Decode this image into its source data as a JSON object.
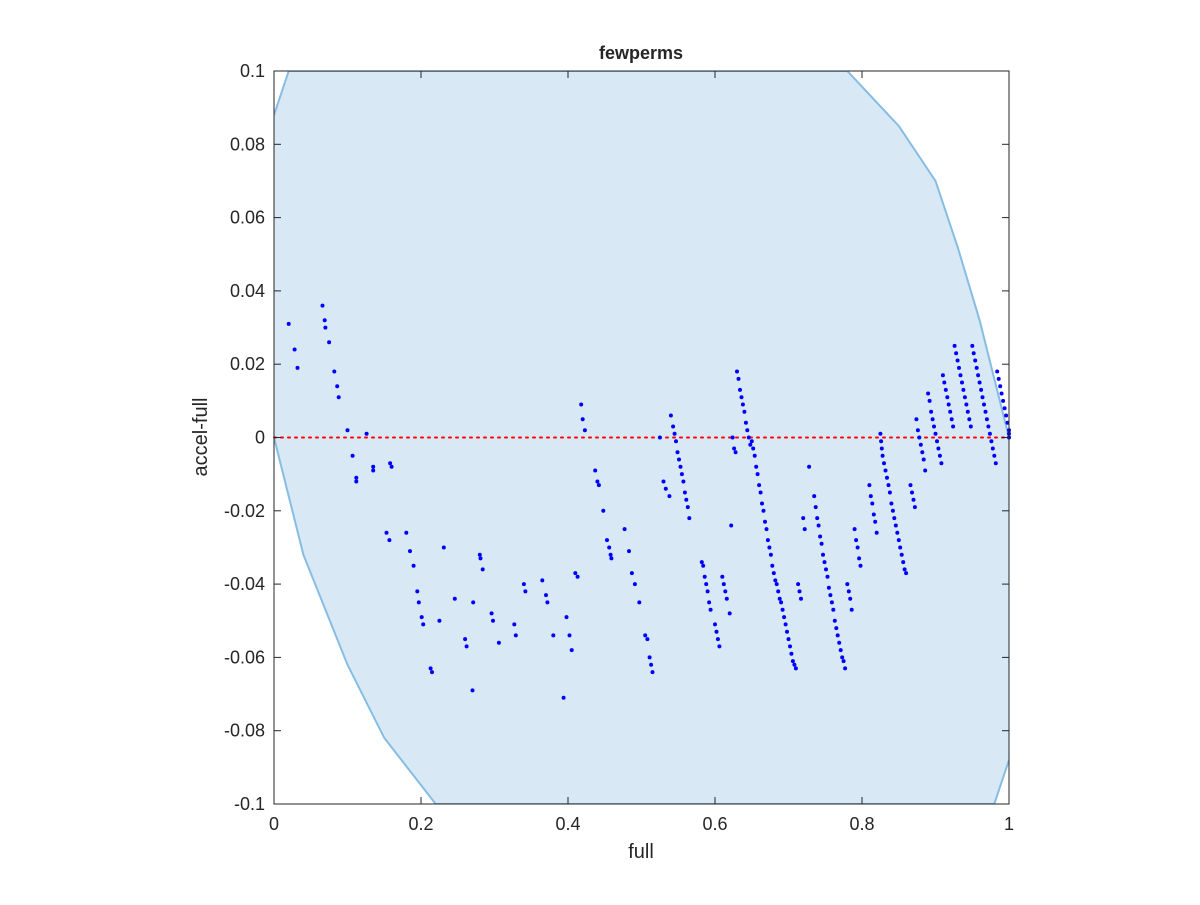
{
  "chart_data": {
    "type": "scatter",
    "title": "fewperms",
    "xlabel": "full",
    "ylabel": "accel-full",
    "xlim": [
      0,
      1
    ],
    "ylim": [
      -0.1,
      0.1
    ],
    "x_ticks": [
      0,
      0.2,
      0.4,
      0.6,
      0.8,
      1
    ],
    "x_tick_labels": [
      "0",
      "0.2",
      "0.4",
      "0.6",
      "0.8",
      "1"
    ],
    "y_ticks": [
      0.1,
      0.08,
      0.06,
      0.04,
      0.02,
      0,
      -0.02,
      -0.04,
      -0.06,
      -0.08,
      -0.1
    ],
    "y_tick_labels": [
      "0.1",
      "0.08",
      "0.06",
      "0.04",
      "0.02",
      "0",
      "-0.02",
      "-0.04",
      "-0.06",
      "-0.08",
      "-0.1"
    ],
    "grid": false,
    "colors": {
      "points": "#0000ff",
      "region_fill": "#d8e8f4",
      "region_edge": "#87bde3",
      "zero_line": "#ff0000",
      "axes": "#262626"
    },
    "region": {
      "upper_boundary": [
        [
          0,
          0.088
        ],
        [
          0.02,
          0.1
        ],
        [
          0.78,
          0.1
        ],
        [
          0.85,
          0.085
        ],
        [
          0.9,
          0.07
        ],
        [
          0.93,
          0.052
        ],
        [
          0.96,
          0.032
        ],
        [
          1,
          0
        ]
      ],
      "lower_boundary": [
        [
          0,
          0
        ],
        [
          0.04,
          -0.032
        ],
        [
          0.1,
          -0.062
        ],
        [
          0.15,
          -0.082
        ],
        [
          0.22,
          -0.1
        ],
        [
          0.98,
          -0.1
        ],
        [
          1,
          -0.088
        ]
      ]
    },
    "zero_line": {
      "y": 0,
      "style": "dotted"
    },
    "series": [
      {
        "points": [
          [
            0.02,
            0.031
          ],
          [
            0.028,
            0.024
          ],
          [
            0.032,
            0.019
          ],
          [
            0.066,
            0.036
          ],
          [
            0.069,
            0.032
          ],
          [
            0.07,
            0.03
          ],
          [
            0.075,
            0.026
          ],
          [
            0.082,
            0.018
          ],
          [
            0.086,
            0.014
          ],
          [
            0.088,
            0.011
          ],
          [
            0.1,
            0.002
          ],
          [
            0.107,
            -0.005
          ],
          [
            0.112,
            -0.011
          ],
          [
            0.112,
            -0.012
          ],
          [
            0.126,
            0.001
          ],
          [
            0.135,
            -0.008
          ],
          [
            0.135,
            -0.009
          ],
          [
            0.153,
            -0.026
          ],
          [
            0.157,
            -0.028
          ],
          [
            0.158,
            -0.007
          ],
          [
            0.16,
            -0.008
          ],
          [
            0.18,
            -0.026
          ],
          [
            0.185,
            -0.031
          ],
          [
            0.19,
            -0.035
          ],
          [
            0.195,
            -0.042
          ],
          [
            0.197,
            -0.045
          ],
          [
            0.201,
            -0.049
          ],
          [
            0.203,
            -0.051
          ],
          [
            0.213,
            -0.063
          ],
          [
            0.215,
            -0.064
          ],
          [
            0.225,
            -0.05
          ],
          [
            0.231,
            -0.03
          ],
          [
            0.246,
            -0.044
          ],
          [
            0.26,
            -0.055
          ],
          [
            0.262,
            -0.057
          ],
          [
            0.27,
            -0.069
          ],
          [
            0.271,
            -0.045
          ],
          [
            0.28,
            -0.032
          ],
          [
            0.281,
            -0.033
          ],
          [
            0.284,
            -0.036
          ],
          [
            0.296,
            -0.048
          ],
          [
            0.298,
            -0.05
          ],
          [
            0.306,
            -0.056
          ],
          [
            0.327,
            -0.051
          ],
          [
            0.329,
            -0.054
          ],
          [
            0.34,
            -0.04
          ],
          [
            0.342,
            -0.042
          ],
          [
            0.365,
            -0.039
          ],
          [
            0.37,
            -0.043
          ],
          [
            0.372,
            -0.045
          ],
          [
            0.38,
            -0.054
          ],
          [
            0.394,
            -0.071
          ],
          [
            0.398,
            -0.049
          ],
          [
            0.402,
            -0.054
          ],
          [
            0.405,
            -0.058
          ],
          [
            0.41,
            -0.037
          ],
          [
            0.413,
            -0.038
          ],
          [
            0.418,
            0.009
          ],
          [
            0.42,
            0.005
          ],
          [
            0.423,
            0.002
          ],
          [
            0.437,
            -0.009
          ],
          [
            0.44,
            -0.012
          ],
          [
            0.442,
            -0.013
          ],
          [
            0.448,
            -0.02
          ],
          [
            0.453,
            -0.028
          ],
          [
            0.456,
            -0.03
          ],
          [
            0.458,
            -0.032
          ],
          [
            0.459,
            -0.033
          ],
          [
            0.477,
            -0.025
          ],
          [
            0.483,
            -0.031
          ],
          [
            0.487,
            -0.037
          ],
          [
            0.491,
            -0.04
          ],
          [
            0.497,
            -0.045
          ],
          [
            0.505,
            -0.054
          ],
          [
            0.508,
            -0.055
          ],
          [
            0.511,
            -0.06
          ],
          [
            0.513,
            -0.062
          ],
          [
            0.515,
            -0.064
          ],
          [
            0.525,
            0
          ],
          [
            0.53,
            -0.012
          ],
          [
            0.533,
            -0.014
          ],
          [
            0.538,
            -0.016
          ],
          [
            0.54,
            0.006
          ],
          [
            0.543,
            0.003
          ],
          [
            0.545,
            0.001
          ],
          [
            0.547,
            -0.001
          ],
          [
            0.549,
            -0.004
          ],
          [
            0.551,
            -0.006
          ],
          [
            0.553,
            -0.008
          ],
          [
            0.555,
            -0.01
          ],
          [
            0.557,
            -0.012
          ],
          [
            0.559,
            -0.015
          ],
          [
            0.561,
            -0.017
          ],
          [
            0.563,
            -0.019
          ],
          [
            0.565,
            -0.022
          ],
          [
            0.582,
            -0.034
          ],
          [
            0.584,
            -0.035
          ],
          [
            0.586,
            -0.038
          ],
          [
            0.588,
            -0.04
          ],
          [
            0.59,
            -0.042
          ],
          [
            0.592,
            -0.045
          ],
          [
            0.594,
            -0.047
          ],
          [
            0.6,
            -0.051
          ],
          [
            0.602,
            -0.053
          ],
          [
            0.604,
            -0.055
          ],
          [
            0.606,
            -0.057
          ],
          [
            0.61,
            -0.038
          ],
          [
            0.612,
            -0.04
          ],
          [
            0.614,
            -0.042
          ],
          [
            0.616,
            -0.044
          ],
          [
            0.62,
            -0.048
          ],
          [
            0.622,
            -0.024
          ],
          [
            0.624,
            0
          ],
          [
            0.626,
            -0.003
          ],
          [
            0.628,
            -0.004
          ],
          [
            0.63,
            0.018
          ],
          [
            0.632,
            0.016
          ],
          [
            0.634,
            0.013
          ],
          [
            0.636,
            0.011
          ],
          [
            0.638,
            0.009
          ],
          [
            0.64,
            0.007
          ],
          [
            0.642,
            0.004
          ],
          [
            0.644,
            0.002
          ],
          [
            0.646,
            0
          ],
          [
            0.648,
            -0.002
          ],
          [
            0.65,
            -0.001
          ],
          [
            0.652,
            -0.003
          ],
          [
            0.654,
            -0.005
          ],
          [
            0.656,
            -0.008
          ],
          [
            0.658,
            -0.01
          ],
          [
            0.66,
            -0.013
          ],
          [
            0.662,
            -0.015
          ],
          [
            0.664,
            -0.018
          ],
          [
            0.666,
            -0.02
          ],
          [
            0.668,
            -0.023
          ],
          [
            0.67,
            -0.025
          ],
          [
            0.672,
            -0.028
          ],
          [
            0.674,
            -0.03
          ],
          [
            0.676,
            -0.032
          ],
          [
            0.678,
            -0.035
          ],
          [
            0.68,
            -0.037
          ],
          [
            0.682,
            -0.039
          ],
          [
            0.684,
            -0.04
          ],
          [
            0.686,
            -0.042
          ],
          [
            0.688,
            -0.044
          ],
          [
            0.69,
            -0.045
          ],
          [
            0.692,
            -0.047
          ],
          [
            0.694,
            -0.049
          ],
          [
            0.696,
            -0.051
          ],
          [
            0.698,
            -0.053
          ],
          [
            0.7,
            -0.055
          ],
          [
            0.702,
            -0.057
          ],
          [
            0.704,
            -0.059
          ],
          [
            0.706,
            -0.061
          ],
          [
            0.708,
            -0.062
          ],
          [
            0.71,
            -0.063
          ],
          [
            0.713,
            -0.04
          ],
          [
            0.715,
            -0.042
          ],
          [
            0.717,
            -0.044
          ],
          [
            0.72,
            -0.022
          ],
          [
            0.722,
            -0.025
          ],
          [
            0.728,
            -0.008
          ],
          [
            0.735,
            -0.016
          ],
          [
            0.737,
            -0.019
          ],
          [
            0.739,
            -0.022
          ],
          [
            0.741,
            -0.024
          ],
          [
            0.743,
            -0.027
          ],
          [
            0.745,
            -0.029
          ],
          [
            0.747,
            -0.032
          ],
          [
            0.749,
            -0.034
          ],
          [
            0.751,
            -0.036
          ],
          [
            0.753,
            -0.038
          ],
          [
            0.755,
            -0.041
          ],
          [
            0.757,
            -0.043
          ],
          [
            0.759,
            -0.045
          ],
          [
            0.761,
            -0.047
          ],
          [
            0.763,
            -0.05
          ],
          [
            0.765,
            -0.052
          ],
          [
            0.767,
            -0.054
          ],
          [
            0.769,
            -0.056
          ],
          [
            0.771,
            -0.058
          ],
          [
            0.773,
            -0.06
          ],
          [
            0.775,
            -0.061
          ],
          [
            0.777,
            -0.063
          ],
          [
            0.78,
            -0.04
          ],
          [
            0.782,
            -0.042
          ],
          [
            0.784,
            -0.044
          ],
          [
            0.786,
            -0.047
          ],
          [
            0.79,
            -0.025
          ],
          [
            0.792,
            -0.028
          ],
          [
            0.794,
            -0.03
          ],
          [
            0.796,
            -0.033
          ],
          [
            0.798,
            -0.035
          ],
          [
            0.81,
            -0.013
          ],
          [
            0.812,
            -0.016
          ],
          [
            0.814,
            -0.018
          ],
          [
            0.816,
            -0.021
          ],
          [
            0.818,
            -0.023
          ],
          [
            0.82,
            -0.026
          ],
          [
            0.825,
            0.001
          ],
          [
            0.826,
            -0.001
          ],
          [
            0.827,
            -0.003
          ],
          [
            0.828,
            -0.005
          ],
          [
            0.83,
            -0.007
          ],
          [
            0.832,
            -0.009
          ],
          [
            0.834,
            -0.011
          ],
          [
            0.836,
            -0.013
          ],
          [
            0.838,
            -0.015
          ],
          [
            0.84,
            -0.018
          ],
          [
            0.842,
            -0.02
          ],
          [
            0.844,
            -0.022
          ],
          [
            0.846,
            -0.024
          ],
          [
            0.848,
            -0.026
          ],
          [
            0.85,
            -0.028
          ],
          [
            0.852,
            -0.03
          ],
          [
            0.854,
            -0.032
          ],
          [
            0.856,
            -0.034
          ],
          [
            0.858,
            -0.036
          ],
          [
            0.86,
            -0.037
          ],
          [
            0.866,
            -0.013
          ],
          [
            0.868,
            -0.015
          ],
          [
            0.87,
            -0.017
          ],
          [
            0.872,
            -0.019
          ],
          [
            0.874,
            0.005
          ],
          [
            0.876,
            0.002
          ],
          [
            0.878,
            0
          ],
          [
            0.88,
            -0.002
          ],
          [
            0.882,
            -0.004
          ],
          [
            0.884,
            -0.006
          ],
          [
            0.886,
            -0.009
          ],
          [
            0.89,
            0.012
          ],
          [
            0.892,
            0.01
          ],
          [
            0.894,
            0.007
          ],
          [
            0.896,
            0.005
          ],
          [
            0.898,
            0.003
          ],
          [
            0.9,
            0.001
          ],
          [
            0.902,
            -0.001
          ],
          [
            0.904,
            -0.003
          ],
          [
            0.906,
            -0.005
          ],
          [
            0.908,
            -0.007
          ],
          [
            0.91,
            0.017
          ],
          [
            0.912,
            0.015
          ],
          [
            0.914,
            0.013
          ],
          [
            0.916,
            0.011
          ],
          [
            0.918,
            0.009
          ],
          [
            0.92,
            0.007
          ],
          [
            0.922,
            0.005
          ],
          [
            0.924,
            0.003
          ],
          [
            0.926,
            0.025
          ],
          [
            0.928,
            0.023
          ],
          [
            0.93,
            0.021
          ],
          [
            0.932,
            0.019
          ],
          [
            0.934,
            0.017
          ],
          [
            0.936,
            0.015
          ],
          [
            0.938,
            0.013
          ],
          [
            0.94,
            0.011
          ],
          [
            0.942,
            0.009
          ],
          [
            0.944,
            0.007
          ],
          [
            0.946,
            0.005
          ],
          [
            0.948,
            0.003
          ],
          [
            0.95,
            0.025
          ],
          [
            0.952,
            0.023
          ],
          [
            0.954,
            0.021
          ],
          [
            0.956,
            0.019
          ],
          [
            0.958,
            0.017
          ],
          [
            0.96,
            0.015
          ],
          [
            0.962,
            0.013
          ],
          [
            0.964,
            0.011
          ],
          [
            0.966,
            0.009
          ],
          [
            0.968,
            0.007
          ],
          [
            0.97,
            0.005
          ],
          [
            0.972,
            0.003
          ],
          [
            0.974,
            0.001
          ],
          [
            0.976,
            -0.001
          ],
          [
            0.978,
            -0.003
          ],
          [
            0.98,
            -0.005
          ],
          [
            0.982,
            -0.007
          ],
          [
            0.984,
            0.018
          ],
          [
            0.986,
            0.016
          ],
          [
            0.988,
            0.014
          ],
          [
            0.99,
            0.012
          ],
          [
            0.992,
            0.01
          ],
          [
            0.994,
            0.008
          ],
          [
            0.996,
            0.006
          ],
          [
            0.998,
            0.004
          ],
          [
            1.0,
            0.002
          ],
          [
            1.0,
            0.001
          ],
          [
            1.0,
            0
          ]
        ]
      }
    ]
  }
}
